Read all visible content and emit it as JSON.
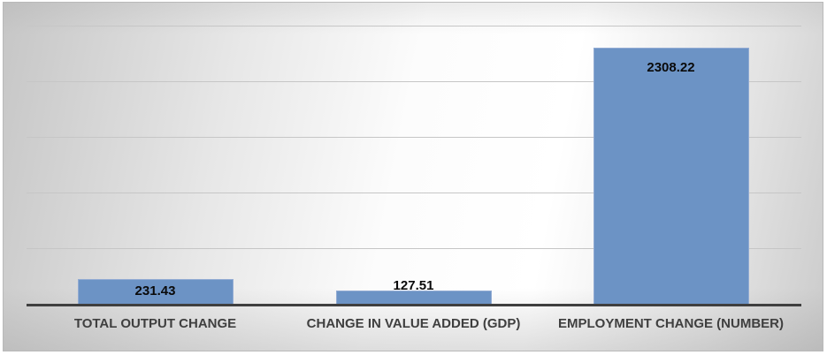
{
  "chart_data": {
    "type": "bar",
    "categories": [
      "TOTAL OUTPUT CHANGE",
      "CHANGE IN VALUE ADDED (GDP)",
      "EMPLOYMENT CHANGE (NUMBER)"
    ],
    "values": [
      231.43,
      127.51,
      2308.22
    ],
    "data_labels": [
      "231.43",
      "127.51",
      "2308.22"
    ],
    "title": "",
    "xlabel": "",
    "ylabel": "",
    "ylim": [
      0,
      2500
    ],
    "gridline_step": 500,
    "grid": true,
    "legend": false,
    "y_tick_labels_shown": false,
    "series_name": ""
  },
  "colors": {
    "bar_fill": "#6C93C5",
    "bar_border": "#92abd3",
    "gridline": "#c6c6c6",
    "axis_line": "#3f3f3f",
    "data_label": "#0a0a0a",
    "category_label": "#3f3f3f",
    "frame_border": "#b9b9b9"
  }
}
